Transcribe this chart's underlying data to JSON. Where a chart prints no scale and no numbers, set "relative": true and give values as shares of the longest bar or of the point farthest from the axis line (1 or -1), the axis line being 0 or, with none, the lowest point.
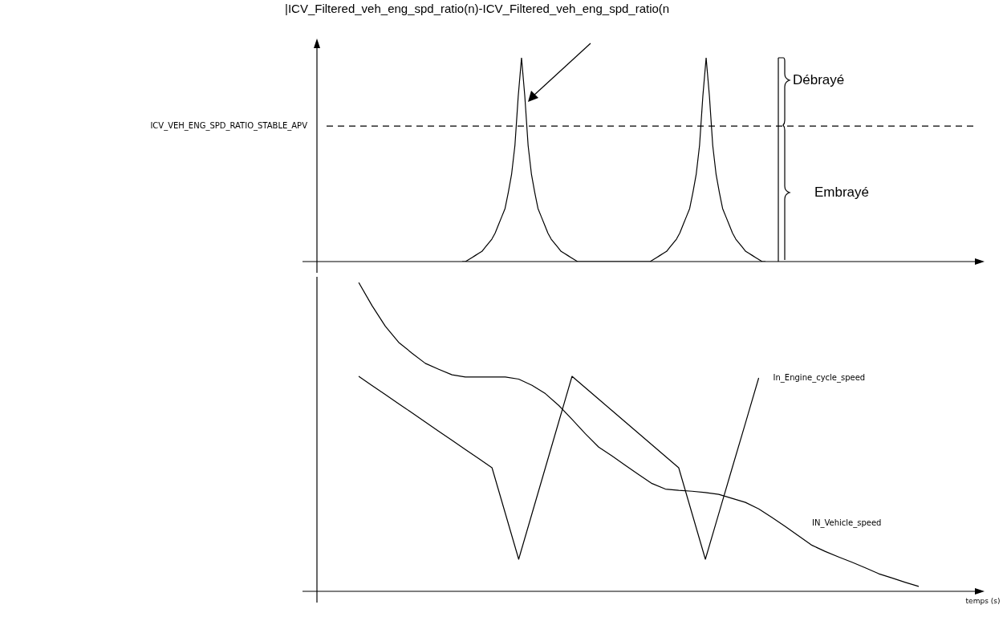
{
  "chart_data": [
    {
      "type": "line",
      "ylabel": "|ICV_Filtered_veh_eng_spd_ratio(n)-ICV_Filtered_veh_eng_spd_ratio(n",
      "relative": true,
      "marker": "none",
      "categories": [
        null,
        null,
        null,
        null,
        null,
        null,
        null,
        null,
        null,
        null,
        null,
        null,
        null,
        null,
        null,
        null,
        null,
        null,
        null,
        null,
        null,
        null,
        null,
        null,
        null,
        null,
        null,
        null,
        null,
        null,
        null,
        null,
        null,
        null,
        null,
        null,
        null,
        null,
        null,
        null,
        null,
        null,
        null,
        null,
        null,
        null,
        null,
        null,
        null,
        null,
        null,
        null,
        null,
        null,
        null,
        null,
        null,
        null,
        null,
        null,
        null,
        null,
        null,
        null,
        null,
        null,
        null,
        null,
        null,
        null,
        null,
        null,
        null,
        null,
        null,
        null,
        null,
        null,
        null,
        null,
        null,
        null,
        null,
        null,
        null,
        null,
        null,
        null,
        null,
        null,
        null,
        null,
        null
      ],
      "ref_lines": [
        {
          "axis": "y",
          "value": 0.665,
          "label": "ICV_VEH_ENG_SPD_RATIO_STABLE_APV",
          "line_style": "dashed"
        }
      ],
      "annotations": [
        "Débrayé",
        "Embrayé"
      ],
      "series": [
        {
          "color": "#000000",
          "values": [
            0,
            0,
            0.01,
            0.02,
            0.03,
            0.04,
            0.05,
            0.07,
            0.09,
            0.11,
            0.14,
            0.18,
            0.22,
            0.26,
            0.34,
            0.43,
            0.57,
            0.811,
            1,
            0.811,
            0.57,
            0.43,
            0.34,
            0.26,
            0.22,
            0.18,
            0.14,
            0.11,
            0.09,
            0.07,
            0.05,
            0.04,
            0.03,
            0.02,
            0.01,
            0,
            0,
            0,
            0,
            0,
            0,
            0,
            0,
            0,
            0,
            0,
            0,
            0,
            0,
            0,
            0,
            0,
            0,
            0,
            0,
            0,
            0,
            0,
            0.01,
            0.02,
            0.03,
            0.04,
            0.05,
            0.07,
            0.09,
            0.11,
            0.14,
            0.18,
            0.22,
            0.26,
            0.34,
            0.43,
            0.57,
            0.811,
            1,
            0.811,
            0.57,
            0.43,
            0.34,
            0.26,
            0.22,
            0.18,
            0.14,
            0.11,
            0.09,
            0.07,
            0.05,
            0.04,
            0.03,
            0.02,
            0.01,
            0,
            0
          ]
        }
      ]
    },
    {
      "type": "line",
      "xlabel": "temps (s)",
      "relative": true,
      "marker": "none",
      "categories": [
        null,
        null,
        null,
        null,
        null,
        null,
        null,
        null,
        null,
        null,
        null,
        null,
        null,
        null,
        null,
        null,
        null,
        null,
        null,
        null,
        null,
        null,
        null,
        null,
        null,
        null,
        null,
        null,
        null,
        null,
        null,
        null,
        null,
        null,
        null,
        null,
        null,
        null,
        null,
        null,
        null,
        null,
        null
      ],
      "series": [
        {
          "name": "In_Engine_cycle_speed",
          "color": "#000000",
          "values": [
            0.696,
            0.666,
            0.637,
            0.607,
            0.578,
            0.548,
            0.518,
            0.489,
            0.459,
            0.43,
            0.4,
            0.252,
            0.104,
            0.252,
            0.4,
            0.548,
            0.696,
            0.659,
            0.622,
            0.585,
            0.548,
            0.511,
            0.474,
            0.437,
            0.4,
            0.252,
            0.104,
            0.251,
            0.398,
            0.544,
            0.691,
            null,
            null,
            null,
            null,
            null,
            null,
            null,
            null,
            null,
            null,
            null,
            null
          ]
        },
        {
          "name": "IN_Vehicle_speed",
          "color": "#000000",
          "values": [
            1,
            0.925,
            0.858,
            0.806,
            0.771,
            0.738,
            0.719,
            0.701,
            0.694,
            0.694,
            0.694,
            0.694,
            0.687,
            0.667,
            0.64,
            0.602,
            0.557,
            0.51,
            0.467,
            0.438,
            0.408,
            0.378,
            0.349,
            0.331,
            0.327,
            0.324,
            0.32,
            0.314,
            0.301,
            0.288,
            0.267,
            0.239,
            0.21,
            0.179,
            0.149,
            0.129,
            0.111,
            0.094,
            0.076,
            0.057,
            0.043,
            0.029,
            0.016
          ]
        }
      ]
    }
  ]
}
